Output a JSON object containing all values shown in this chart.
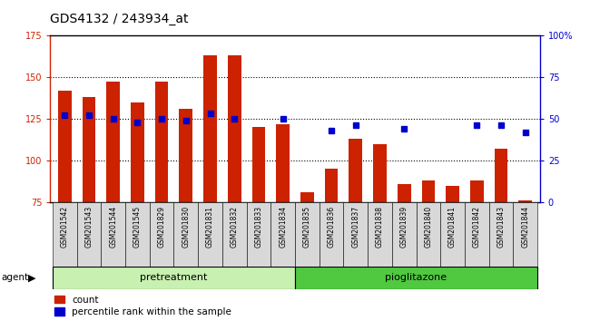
{
  "title": "GDS4132 / 243934_at",
  "samples": [
    "GSM201542",
    "GSM201543",
    "GSM201544",
    "GSM201545",
    "GSM201829",
    "GSM201830",
    "GSM201831",
    "GSM201832",
    "GSM201833",
    "GSM201834",
    "GSM201835",
    "GSM201836",
    "GSM201837",
    "GSM201838",
    "GSM201839",
    "GSM201840",
    "GSM201841",
    "GSM201842",
    "GSM201843",
    "GSM201844"
  ],
  "counts": [
    142,
    138,
    147,
    135,
    147,
    131,
    163,
    163,
    120,
    122,
    81,
    95,
    113,
    110,
    86,
    88,
    85,
    88,
    107,
    76
  ],
  "percentiles": [
    52,
    52,
    50,
    48,
    50,
    49,
    53,
    50,
    null,
    50,
    null,
    43,
    46,
    null,
    44,
    null,
    null,
    46,
    46,
    42
  ],
  "ylim_left": [
    75,
    175
  ],
  "ylim_right": [
    0,
    100
  ],
  "yticks_left": [
    75,
    100,
    125,
    150,
    175
  ],
  "yticks_right": [
    0,
    25,
    50,
    75,
    100
  ],
  "ytick_labels_right": [
    "0",
    "25",
    "50",
    "75",
    "100%"
  ],
  "bar_color": "#CC2200",
  "dot_color": "#0000CC",
  "bar_width": 0.55,
  "pre_color": "#C8F0B0",
  "pio_color": "#50C840",
  "legend_count_label": "count",
  "legend_pct_label": "percentile rank within the sample",
  "title_fontsize": 10,
  "tick_fontsize": 7,
  "label_fontsize": 7
}
